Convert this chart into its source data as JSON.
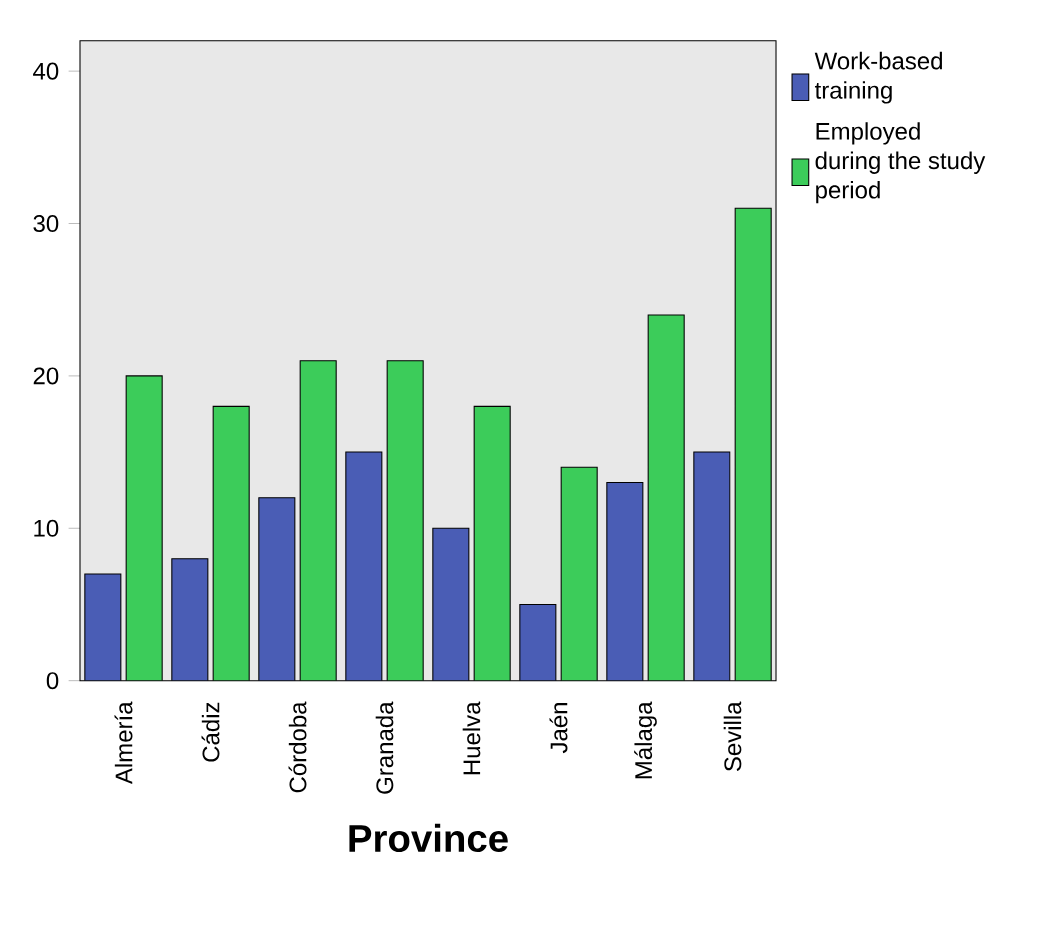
{
  "chart_data": {
    "type": "bar",
    "xlabel": "Province",
    "categories": [
      "Almería",
      "Cádiz",
      "Córdoba",
      "Granada",
      "Huelva",
      "Jaén",
      "Málaga",
      "Sevilla"
    ],
    "series": [
      {
        "name": "Work-based training",
        "color": "#4a5db5",
        "values": [
          7,
          8,
          12,
          15,
          10,
          5,
          13,
          15
        ]
      },
      {
        "name": "Employed during the study period",
        "color": "#3ccc5a",
        "values": [
          20,
          18,
          21,
          21,
          18,
          14,
          24,
          31
        ]
      }
    ],
    "ylim": [
      0,
      42
    ],
    "yticks": [
      0,
      10,
      20,
      30,
      40
    ],
    "legend": "top right",
    "grid": false
  }
}
